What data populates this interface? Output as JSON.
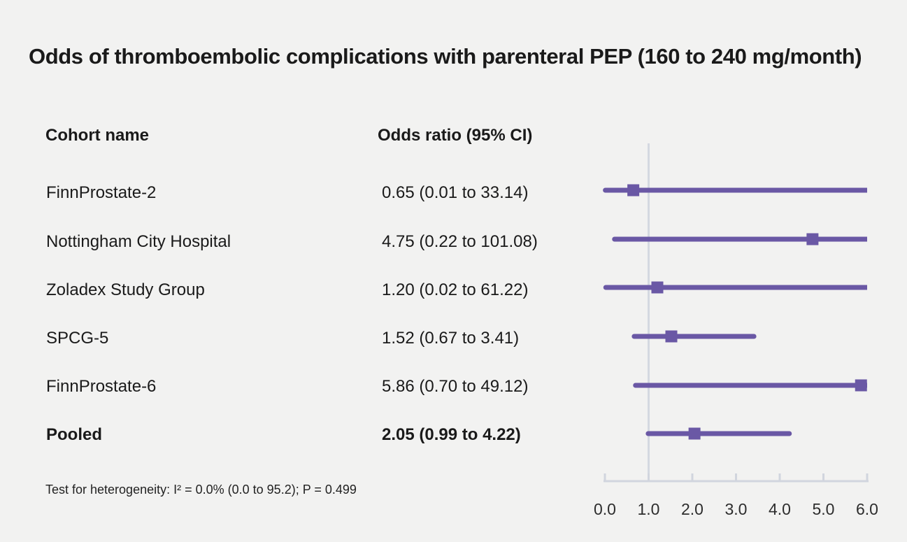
{
  "title": "Odds of thromboembolic complications with parenteral PEP (160 to 240 mg/month)",
  "columns": {
    "cohort": "Cohort name",
    "odds_ratio": "Odds ratio (95% CI)"
  },
  "footnote": "Test for heterogeneity: I² = 0.0% (0.0 to 95.2); P = 0.499",
  "chart_data": {
    "type": "forest",
    "title": "Odds of thromboembolic complications with parenteral PEP (160 to 240 mg/month)",
    "xlabel": "",
    "ylabel": "",
    "xlim": [
      0.0,
      6.0
    ],
    "x_ticks": [
      0.0,
      1.0,
      2.0,
      3.0,
      4.0,
      5.0,
      6.0
    ],
    "x_tick_labels": [
      "0.0",
      "1.0",
      "2.0",
      "3.0",
      "4.0",
      "5.0",
      "6.0"
    ],
    "reference_line": 1.0,
    "grid": false,
    "legend": false,
    "rows": [
      {
        "cohort": "FinnProstate-2",
        "label": "0.65 (0.01 to 33.14)",
        "or": 0.65,
        "ci_low": 0.01,
        "ci_high": 33.14,
        "bold": false
      },
      {
        "cohort": "Nottingham City Hospital",
        "label": "4.75 (0.22 to 101.08)",
        "or": 4.75,
        "ci_low": 0.22,
        "ci_high": 101.08,
        "bold": false
      },
      {
        "cohort": "Zoladex Study Group",
        "label": "1.20 (0.02 to 61.22)",
        "or": 1.2,
        "ci_low": 0.02,
        "ci_high": 61.22,
        "bold": false
      },
      {
        "cohort": "SPCG-5",
        "label": "1.52 (0.67 to 3.41)",
        "or": 1.52,
        "ci_low": 0.67,
        "ci_high": 3.41,
        "bold": false
      },
      {
        "cohort": "FinnProstate-6",
        "label": "5.86 (0.70 to 49.12)",
        "or": 5.86,
        "ci_low": 0.7,
        "ci_high": 49.12,
        "bold": false
      },
      {
        "cohort": "Pooled",
        "label": "2.05 (0.99 to 4.22)",
        "or": 2.05,
        "ci_low": 0.99,
        "ci_high": 4.22,
        "bold": true
      }
    ],
    "colors": {
      "marker": "#6a58a5",
      "ci_line": "#6a58a5",
      "axis": "#d1d5de",
      "reference_line": "#d4d8e1",
      "background": "#f2f2f1",
      "text": "#1a1a1a",
      "tick_label": "#2d2d2d"
    }
  }
}
